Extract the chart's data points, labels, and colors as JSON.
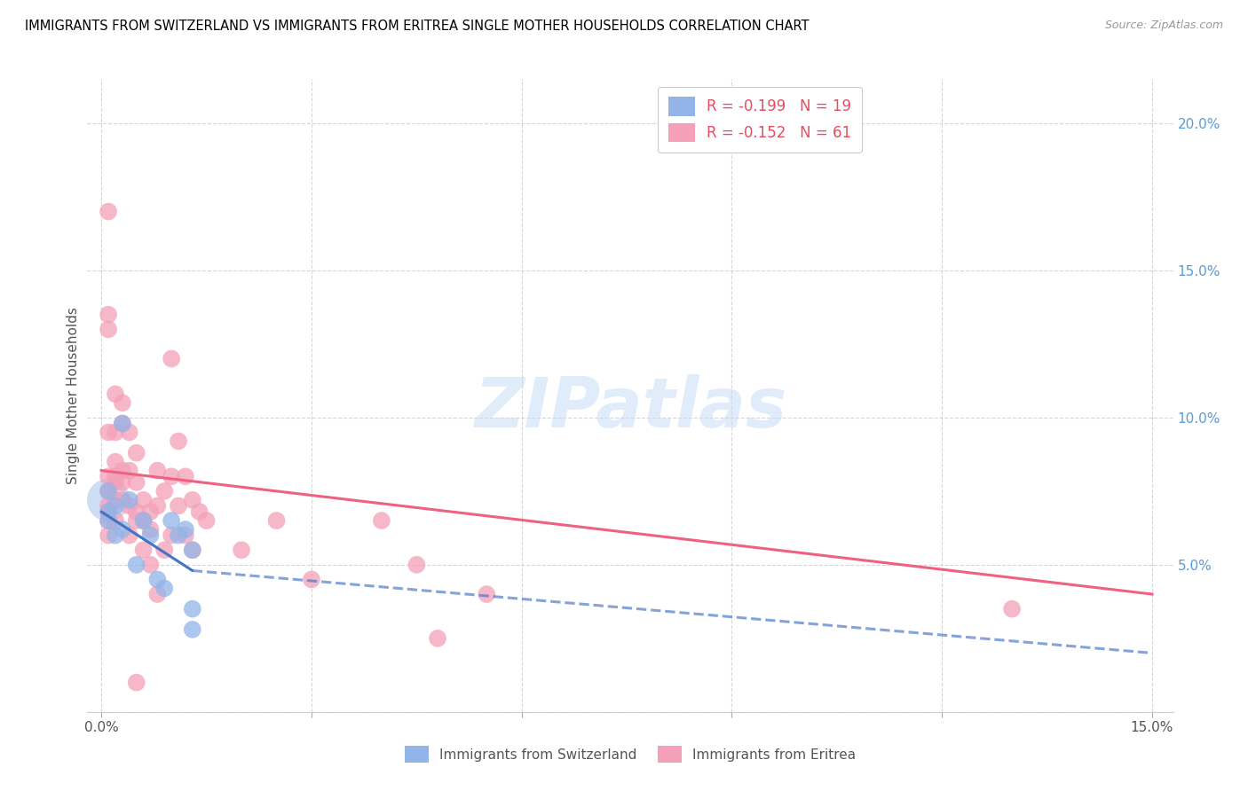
{
  "title": "IMMIGRANTS FROM SWITZERLAND VS IMMIGRANTS FROM ERITREA SINGLE MOTHER HOUSEHOLDS CORRELATION CHART",
  "source": "Source: ZipAtlas.com",
  "ylabel": "Single Mother Households",
  "switzerland_R": -0.199,
  "switzerland_N": 19,
  "eritrea_R": -0.152,
  "eritrea_N": 61,
  "switzerland_color": "#92b4e8",
  "eritrea_color": "#f4a0b8",
  "switzerland_line_color": "#4472c4",
  "eritrea_line_color": "#f06080",
  "watermark": "ZIPatlas",
  "xlim": [
    -0.002,
    0.153
  ],
  "ylim": [
    0.0,
    0.215
  ],
  "sw_x": [
    0.001,
    0.001,
    0.001,
    0.002,
    0.002,
    0.003,
    0.003,
    0.004,
    0.005,
    0.006,
    0.007,
    0.008,
    0.009,
    0.01,
    0.011,
    0.012,
    0.013,
    0.013,
    0.013
  ],
  "sw_y": [
    0.075,
    0.068,
    0.065,
    0.07,
    0.06,
    0.098,
    0.062,
    0.072,
    0.05,
    0.065,
    0.06,
    0.045,
    0.042,
    0.065,
    0.06,
    0.062,
    0.055,
    0.035,
    0.028
  ],
  "er_x": [
    0.001,
    0.001,
    0.001,
    0.001,
    0.001,
    0.001,
    0.001,
    0.001,
    0.001,
    0.001,
    0.002,
    0.002,
    0.002,
    0.002,
    0.002,
    0.002,
    0.002,
    0.003,
    0.003,
    0.003,
    0.003,
    0.003,
    0.004,
    0.004,
    0.004,
    0.004,
    0.005,
    0.005,
    0.005,
    0.005,
    0.005,
    0.006,
    0.006,
    0.006,
    0.007,
    0.007,
    0.007,
    0.008,
    0.008,
    0.008,
    0.009,
    0.009,
    0.01,
    0.01,
    0.01,
    0.011,
    0.011,
    0.012,
    0.012,
    0.013,
    0.013,
    0.014,
    0.015,
    0.02,
    0.025,
    0.03,
    0.04,
    0.045,
    0.048,
    0.055,
    0.13
  ],
  "er_y": [
    0.17,
    0.135,
    0.13,
    0.095,
    0.08,
    0.075,
    0.07,
    0.068,
    0.065,
    0.06,
    0.108,
    0.095,
    0.085,
    0.08,
    0.078,
    0.072,
    0.065,
    0.105,
    0.098,
    0.082,
    0.078,
    0.072,
    0.095,
    0.082,
    0.07,
    0.06,
    0.088,
    0.078,
    0.068,
    0.065,
    0.01,
    0.072,
    0.065,
    0.055,
    0.068,
    0.062,
    0.05,
    0.082,
    0.07,
    0.04,
    0.075,
    0.055,
    0.12,
    0.08,
    0.06,
    0.092,
    0.07,
    0.08,
    0.06,
    0.072,
    0.055,
    0.068,
    0.065,
    0.055,
    0.065,
    0.045,
    0.065,
    0.05,
    0.025,
    0.04,
    0.035
  ],
  "sw_line_x0": 0.0,
  "sw_line_x_solid_end": 0.013,
  "sw_line_x_dash_end": 0.15,
  "sw_line_y0": 0.068,
  "sw_line_y_solid_end": 0.048,
  "sw_line_y_dash_end": 0.02,
  "er_line_x0": 0.0,
  "er_line_x_end": 0.15,
  "er_line_y0": 0.082,
  "er_line_y_end": 0.04
}
